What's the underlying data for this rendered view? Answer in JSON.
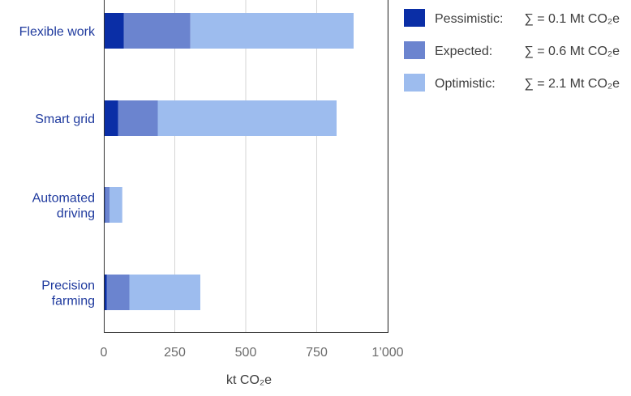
{
  "chart_data": {
    "type": "bar",
    "orientation": "horizontal",
    "stacked": true,
    "categories": [
      [
        "Flexible work"
      ],
      [
        "Smart grid"
      ],
      [
        "Automated",
        "driving"
      ],
      [
        "Precision",
        "farming"
      ]
    ],
    "series": [
      {
        "name": "Pessimistic:",
        "sum_label": "∑ = 0.1 Mt CO₂e",
        "color": "#0a2ea6",
        "values": [
          70,
          50,
          5,
          10
        ]
      },
      {
        "name": "Expected:",
        "sum_label": "∑ = 0.6 Mt CO₂e",
        "color": "#6b84cf",
        "values": [
          235,
          140,
          15,
          80
        ]
      },
      {
        "name": "Optimistic:",
        "sum_label": "∑ = 2.1 Mt CO₂e",
        "color": "#9dbcee",
        "values": [
          575,
          630,
          45,
          250
        ]
      }
    ],
    "xticks": [
      "0",
      "250",
      "500",
      "750",
      "1’000"
    ],
    "xtick_values": [
      0,
      250,
      500,
      750,
      1000
    ],
    "xlim": [
      0,
      1000
    ],
    "xlabel": "kt CO₂e",
    "grid": "vertical",
    "legend_position": "top-right"
  }
}
